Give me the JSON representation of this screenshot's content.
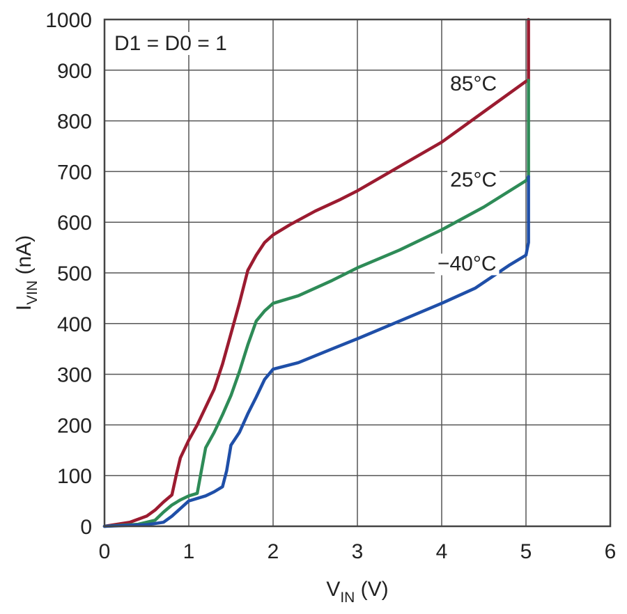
{
  "chart_data": {
    "type": "line",
    "xlabel_main": "V",
    "xlabel_sub": "IN",
    "xlabel_unit": " (V)",
    "ylabel_main": "I",
    "ylabel_sub": "VIN",
    "ylabel_unit": " (nA)",
    "xlim": [
      0,
      6
    ],
    "ylim": [
      0,
      1000
    ],
    "xticks": [
      0,
      1,
      2,
      3,
      4,
      5,
      6
    ],
    "yticks": [
      0,
      100,
      200,
      300,
      400,
      500,
      600,
      700,
      800,
      900,
      1000
    ],
    "grid": true,
    "annotation": "D1 = D0 = 1",
    "series": [
      {
        "name": "85°C",
        "color": "#9b1b30",
        "points": [
          [
            0,
            0
          ],
          [
            0.3,
            8
          ],
          [
            0.5,
            20
          ],
          [
            0.6,
            32
          ],
          [
            0.7,
            48
          ],
          [
            0.8,
            62
          ],
          [
            0.85,
            100
          ],
          [
            0.9,
            135
          ],
          [
            1.0,
            170
          ],
          [
            1.1,
            200
          ],
          [
            1.2,
            235
          ],
          [
            1.3,
            270
          ],
          [
            1.4,
            320
          ],
          [
            1.5,
            380
          ],
          [
            1.6,
            440
          ],
          [
            1.7,
            505
          ],
          [
            1.8,
            535
          ],
          [
            1.9,
            560
          ],
          [
            2.0,
            575
          ],
          [
            2.2,
            595
          ],
          [
            2.5,
            622
          ],
          [
            2.8,
            645
          ],
          [
            3.0,
            662
          ],
          [
            3.5,
            710
          ],
          [
            4.0,
            758
          ],
          [
            4.5,
            818
          ],
          [
            5.0,
            878
          ],
          [
            5.03,
            880
          ],
          [
            5.03,
            1000
          ]
        ]
      },
      {
        "name": "25°C",
        "color": "#2e8b57",
        "points": [
          [
            0,
            0
          ],
          [
            0.4,
            4
          ],
          [
            0.6,
            12
          ],
          [
            0.7,
            28
          ],
          [
            0.8,
            42
          ],
          [
            0.9,
            52
          ],
          [
            1.0,
            60
          ],
          [
            1.1,
            65
          ],
          [
            1.15,
            110
          ],
          [
            1.2,
            155
          ],
          [
            1.3,
            185
          ],
          [
            1.4,
            220
          ],
          [
            1.5,
            258
          ],
          [
            1.6,
            305
          ],
          [
            1.7,
            358
          ],
          [
            1.8,
            405
          ],
          [
            1.9,
            425
          ],
          [
            2.0,
            440
          ],
          [
            2.3,
            455
          ],
          [
            2.7,
            485
          ],
          [
            3.0,
            510
          ],
          [
            3.5,
            545
          ],
          [
            4.0,
            585
          ],
          [
            4.5,
            630
          ],
          [
            5.0,
            682
          ],
          [
            5.03,
            690
          ],
          [
            5.03,
            880
          ]
        ]
      },
      {
        "name": "−40°C",
        "color": "#1f4fa8",
        "points": [
          [
            0,
            0
          ],
          [
            0.5,
            3
          ],
          [
            0.7,
            8
          ],
          [
            0.8,
            20
          ],
          [
            0.9,
            35
          ],
          [
            1.0,
            50
          ],
          [
            1.2,
            60
          ],
          [
            1.3,
            68
          ],
          [
            1.4,
            78
          ],
          [
            1.45,
            110
          ],
          [
            1.5,
            160
          ],
          [
            1.6,
            185
          ],
          [
            1.7,
            222
          ],
          [
            1.8,
            255
          ],
          [
            1.9,
            290
          ],
          [
            2.0,
            310
          ],
          [
            2.3,
            323
          ],
          [
            2.7,
            350
          ],
          [
            3.0,
            370
          ],
          [
            3.5,
            405
          ],
          [
            4.0,
            440
          ],
          [
            4.4,
            470
          ],
          [
            4.8,
            515
          ],
          [
            5.0,
            535
          ],
          [
            5.03,
            560
          ],
          [
            5.03,
            690
          ]
        ]
      }
    ],
    "labels": [
      {
        "text": "85°C",
        "x": 4.1,
        "y": 860
      },
      {
        "text": "25°C",
        "x": 4.1,
        "y": 670
      },
      {
        "text": "−40°C",
        "x": 3.95,
        "y": 505
      }
    ]
  }
}
